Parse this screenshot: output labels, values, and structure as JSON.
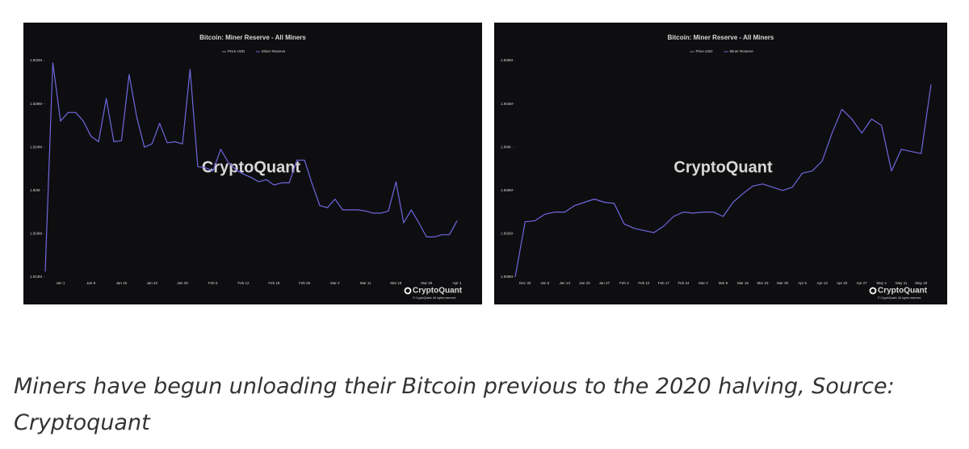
{
  "chart_data": [
    {
      "type": "line",
      "title": "Bitcoin: Miner Reserve - All Miners",
      "legend": [
        {
          "name": "Price USD",
          "color": "#8a8a8a"
        },
        {
          "name": "Miner Reserve",
          "color": "#6f67e0"
        }
      ],
      "watermark": "CryptoQuant",
      "brand": "CryptoQuant",
      "copyright": "© CryptoQuant. All rights reserved.",
      "categories": [
        null,
        null,
        "Jan 1",
        null,
        null,
        null,
        "Jan 8",
        null,
        null,
        null,
        "Jan 15",
        null,
        null,
        null,
        "Jan 22",
        null,
        null,
        null,
        "Jan 29",
        null,
        null,
        null,
        "Feb 5",
        null,
        null,
        null,
        "Feb 12",
        null,
        null,
        null,
        "Feb 19",
        null,
        null,
        null,
        "Feb 26",
        null,
        null,
        null,
        "Mar 4",
        null,
        null,
        null,
        "Mar 11",
        null,
        null,
        null,
        "Mar 18",
        null,
        null,
        null,
        "Mar 25",
        null,
        null,
        null,
        "Apr 1"
      ],
      "series": [
        {
          "color": "#6f67e0",
          "values": [
            1.8125,
            1.8318,
            1.8264,
            1.8272,
            1.8272,
            1.8264,
            1.825,
            1.8245,
            1.8285,
            1.8245,
            1.8246,
            1.8307,
            1.8268,
            1.824,
            1.8243,
            1.8262,
            1.8244,
            1.8245,
            1.8243,
            1.8312,
            1.8222,
            1.8221,
            1.8218,
            1.8238,
            1.8226,
            1.8219,
            1.8215,
            1.8212,
            1.8208,
            1.821,
            1.8205,
            1.8207,
            1.8207,
            1.8228,
            1.8228,
            1.8206,
            1.8186,
            1.8184,
            1.8192,
            1.8182,
            1.8182,
            1.8182,
            1.8181,
            1.8179,
            1.8179,
            1.8181,
            1.8208,
            1.817,
            1.8182,
            1.817,
            1.8157,
            1.8157,
            1.8159,
            1.8159,
            1.8172
          ]
        }
      ],
      "ylim": [
        1.812,
        1.832
      ],
      "yticks": [
        {
          "value": 1.812,
          "label": "1.812M"
        },
        {
          "value": 1.816,
          "label": "1.816M"
        },
        {
          "value": 1.82,
          "label": "1.82M"
        },
        {
          "value": 1.824,
          "label": "1.824M"
        },
        {
          "value": 1.828,
          "label": "1.828M"
        },
        {
          "value": 1.832,
          "label": "1.832M"
        }
      ],
      "grid": false
    },
    {
      "type": "line",
      "title": "Bitcoin: Miner Reserve - All Miners",
      "legend": [
        {
          "name": "Price USD",
          "color": "#8a8a8a"
        },
        {
          "name": "Miner Reserve",
          "color": "#6f67e0"
        }
      ],
      "watermark": "CryptoQuant",
      "brand": "CryptoQuant",
      "copyright": "© CryptoQuant. All rights reserved.",
      "categories": [
        null,
        "Dec 30",
        null,
        "Jan 6",
        null,
        "Jan 13",
        null,
        "Jan 20",
        null,
        "Jan 27",
        null,
        "Feb 3",
        null,
        "Feb 10",
        null,
        "Feb 17",
        null,
        "Feb 24",
        null,
        "Mar 2",
        null,
        "Mar 9",
        null,
        "Mar 16",
        null,
        "Mar 23",
        null,
        "Mar 30",
        null,
        "Apr 6",
        null,
        "Apr 13",
        null,
        "Apr 20",
        null,
        "Apr 27",
        null,
        "May 4",
        null,
        "May 11",
        null,
        "May 18",
        null
      ],
      "series": [
        {
          "color": "#6f67e0",
          "values": [
            1.828,
            1.8331,
            1.8332,
            1.8338,
            1.834,
            1.834,
            1.8346,
            1.8349,
            1.8352,
            1.8349,
            1.8348,
            1.8329,
            1.8325,
            1.8323,
            1.8321,
            1.8327,
            1.8336,
            1.834,
            1.8339,
            1.834,
            1.834,
            1.8336,
            1.8349,
            1.8357,
            1.8364,
            1.8366,
            1.8363,
            1.836,
            1.8363,
            1.8376,
            1.8378,
            1.8387,
            1.8413,
            1.8435,
            1.8426,
            1.8413,
            1.8426,
            1.842,
            1.8378,
            1.8398,
            1.8396,
            1.8394,
            1.8458
          ]
        }
      ],
      "ylim": [
        1.828,
        1.848
      ],
      "yticks": [
        {
          "value": 1.828,
          "label": "1.828M"
        },
        {
          "value": 1.832,
          "label": "1.832M"
        },
        {
          "value": 1.836,
          "label": "1.836M"
        },
        {
          "value": 1.84,
          "label": "1.84M"
        },
        {
          "value": 1.844,
          "label": "1.844M"
        },
        {
          "value": 1.848,
          "label": "1.848M"
        }
      ],
      "grid": false
    }
  ],
  "caption": "Miners have begun unloading their Bitcoin previous to the 2020 halving, Source: Cryptoquant"
}
